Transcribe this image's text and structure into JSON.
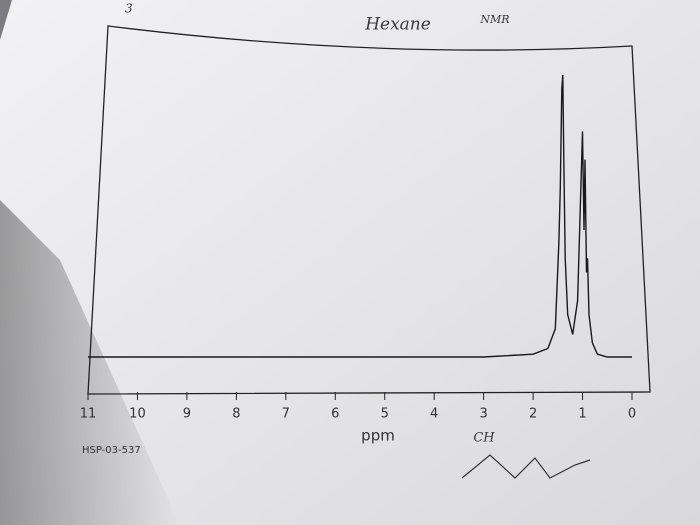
{
  "chart_data": {
    "type": "line",
    "title": "Hexane",
    "subtitle": "NMR",
    "page_number": "3",
    "x_label": "ppm",
    "code": "HSP-03-537",
    "structure_label": "CH",
    "x": [
      11,
      3,
      2,
      1.7,
      1.55,
      1.48,
      1.45,
      1.42,
      1.4,
      1.38,
      1.35,
      1.3,
      1.2,
      1.1,
      1.0,
      0.97,
      0.95,
      0.92,
      0.9,
      0.87,
      0.8,
      0.7,
      0.5,
      0
    ],
    "values": [
      0,
      0,
      1,
      3,
      10,
      40,
      60,
      95,
      100,
      70,
      35,
      15,
      8,
      20,
      80,
      45,
      70,
      30,
      35,
      15,
      5,
      1,
      0,
      0
    ],
    "color": "#1a1a1a",
    "xlim": [
      11,
      0
    ],
    "ylim": [
      0,
      100
    ],
    "xticks": [
      11,
      10,
      9,
      8,
      7,
      6,
      5,
      4,
      3,
      2,
      1,
      0
    ]
  }
}
